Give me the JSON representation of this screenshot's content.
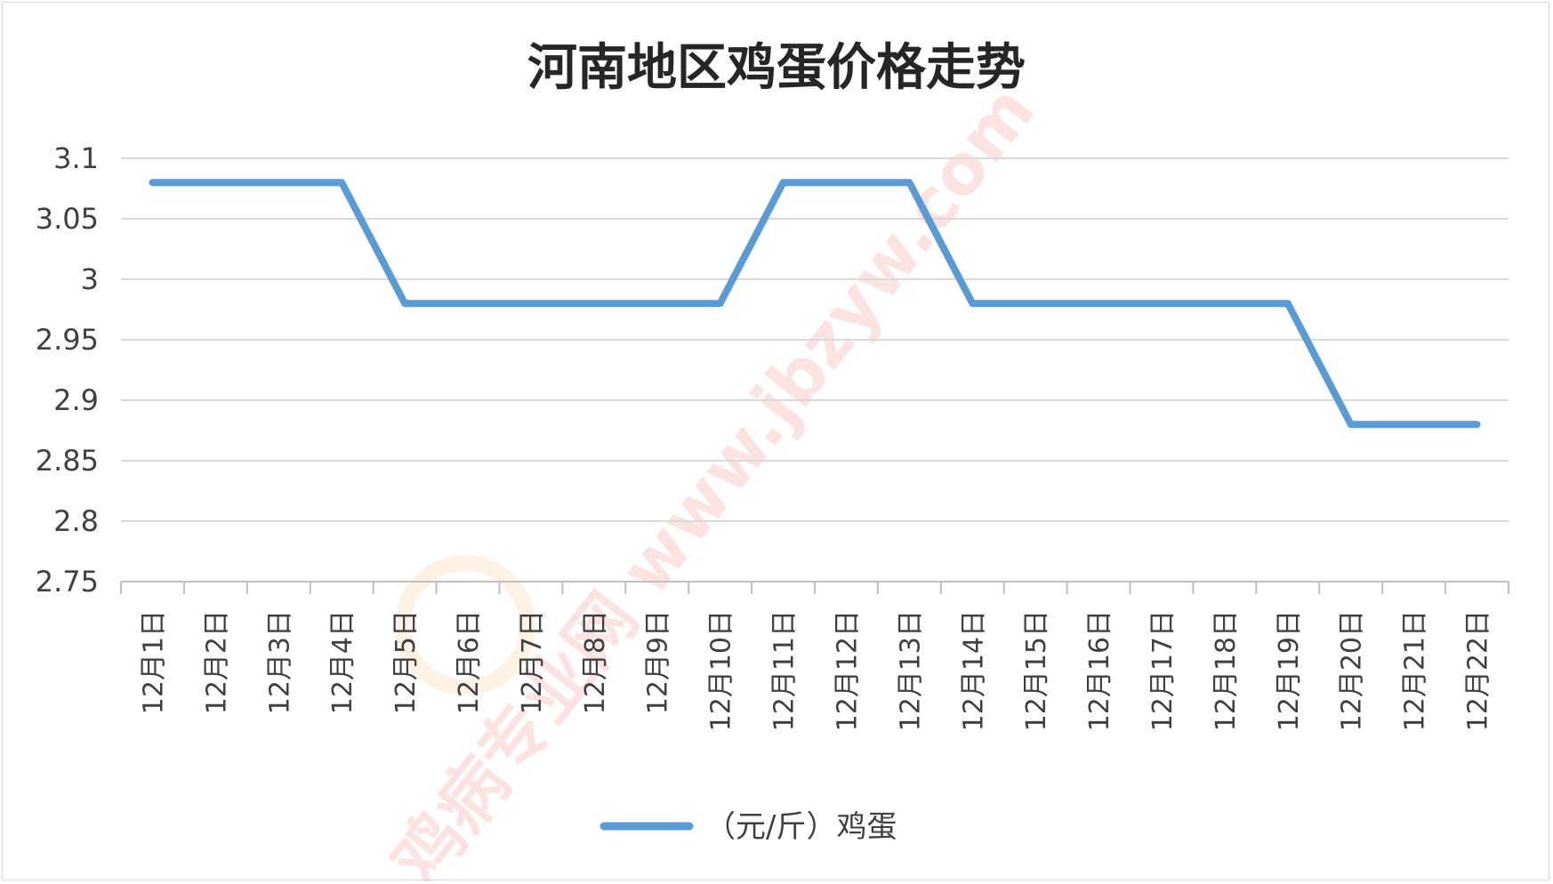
{
  "chart_data": {
    "type": "line",
    "title": "河南地区鸡蛋价格走势",
    "xlabel": "",
    "ylabel": "",
    "categories": [
      "12月1日",
      "12月2日",
      "12月3日",
      "12月4日",
      "12月5日",
      "12月6日",
      "12月7日",
      "12月8日",
      "12月9日",
      "12月10日",
      "12月11日",
      "12月12日",
      "12月13日",
      "12月14日",
      "12月15日",
      "12月16日",
      "12月17日",
      "12月18日",
      "12月19日",
      "12月20日",
      "12月21日",
      "12月22日"
    ],
    "series": [
      {
        "name": "（元/斤）鸡蛋",
        "color": "#5b9bd5",
        "values": [
          3.08,
          3.08,
          3.08,
          3.08,
          2.98,
          2.98,
          2.98,
          2.98,
          2.98,
          2.98,
          3.08,
          3.08,
          3.08,
          2.98,
          2.98,
          2.98,
          2.98,
          2.98,
          2.98,
          2.88,
          2.88,
          2.88
        ]
      }
    ],
    "ylim": [
      2.75,
      3.1
    ],
    "yticks": [
      "3.1",
      "3.05",
      "3",
      "2.95",
      "2.9",
      "2.85",
      "2.8",
      "2.75"
    ],
    "ytick_values": [
      3.1,
      3.05,
      3.0,
      2.95,
      2.9,
      2.85,
      2.8,
      2.75
    ],
    "grid": true,
    "legend": "bottom",
    "watermark": "鸡病专业网 www.jbzyw.com"
  }
}
